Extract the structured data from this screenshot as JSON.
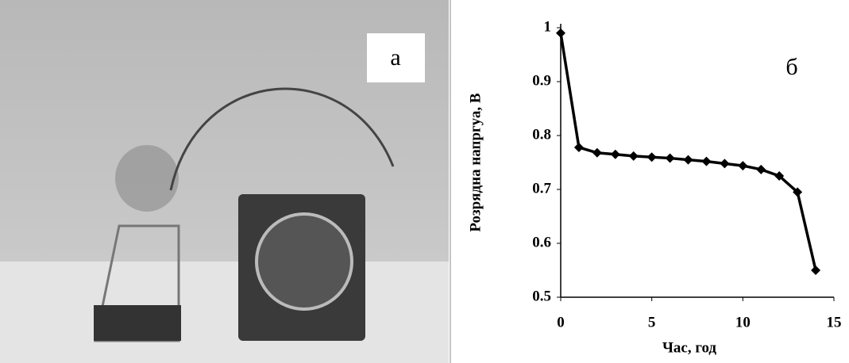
{
  "photo": {
    "label": "а"
  },
  "chart_data": {
    "type": "line",
    "annotation": "б",
    "xlabel": "Час, год",
    "ylabel": "Розрядна напргуа, В",
    "x": [
      0,
      1,
      2,
      3,
      4,
      5,
      6,
      7,
      8,
      9,
      10,
      11,
      12,
      13,
      14
    ],
    "series": [
      {
        "color": "#000000",
        "values": [
          0.99,
          0.778,
          0.768,
          0.765,
          0.762,
          0.76,
          0.758,
          0.755,
          0.752,
          0.748,
          0.744,
          0.737,
          0.725,
          0.695,
          0.55
        ]
      }
    ],
    "xlim": [
      0,
      15
    ],
    "xticks": [
      0,
      5,
      10,
      15
    ],
    "ylim": [
      0.5,
      1
    ],
    "yticks": [
      0.5,
      0.6,
      0.7,
      0.8,
      0.9,
      1
    ],
    "grid": false
  }
}
